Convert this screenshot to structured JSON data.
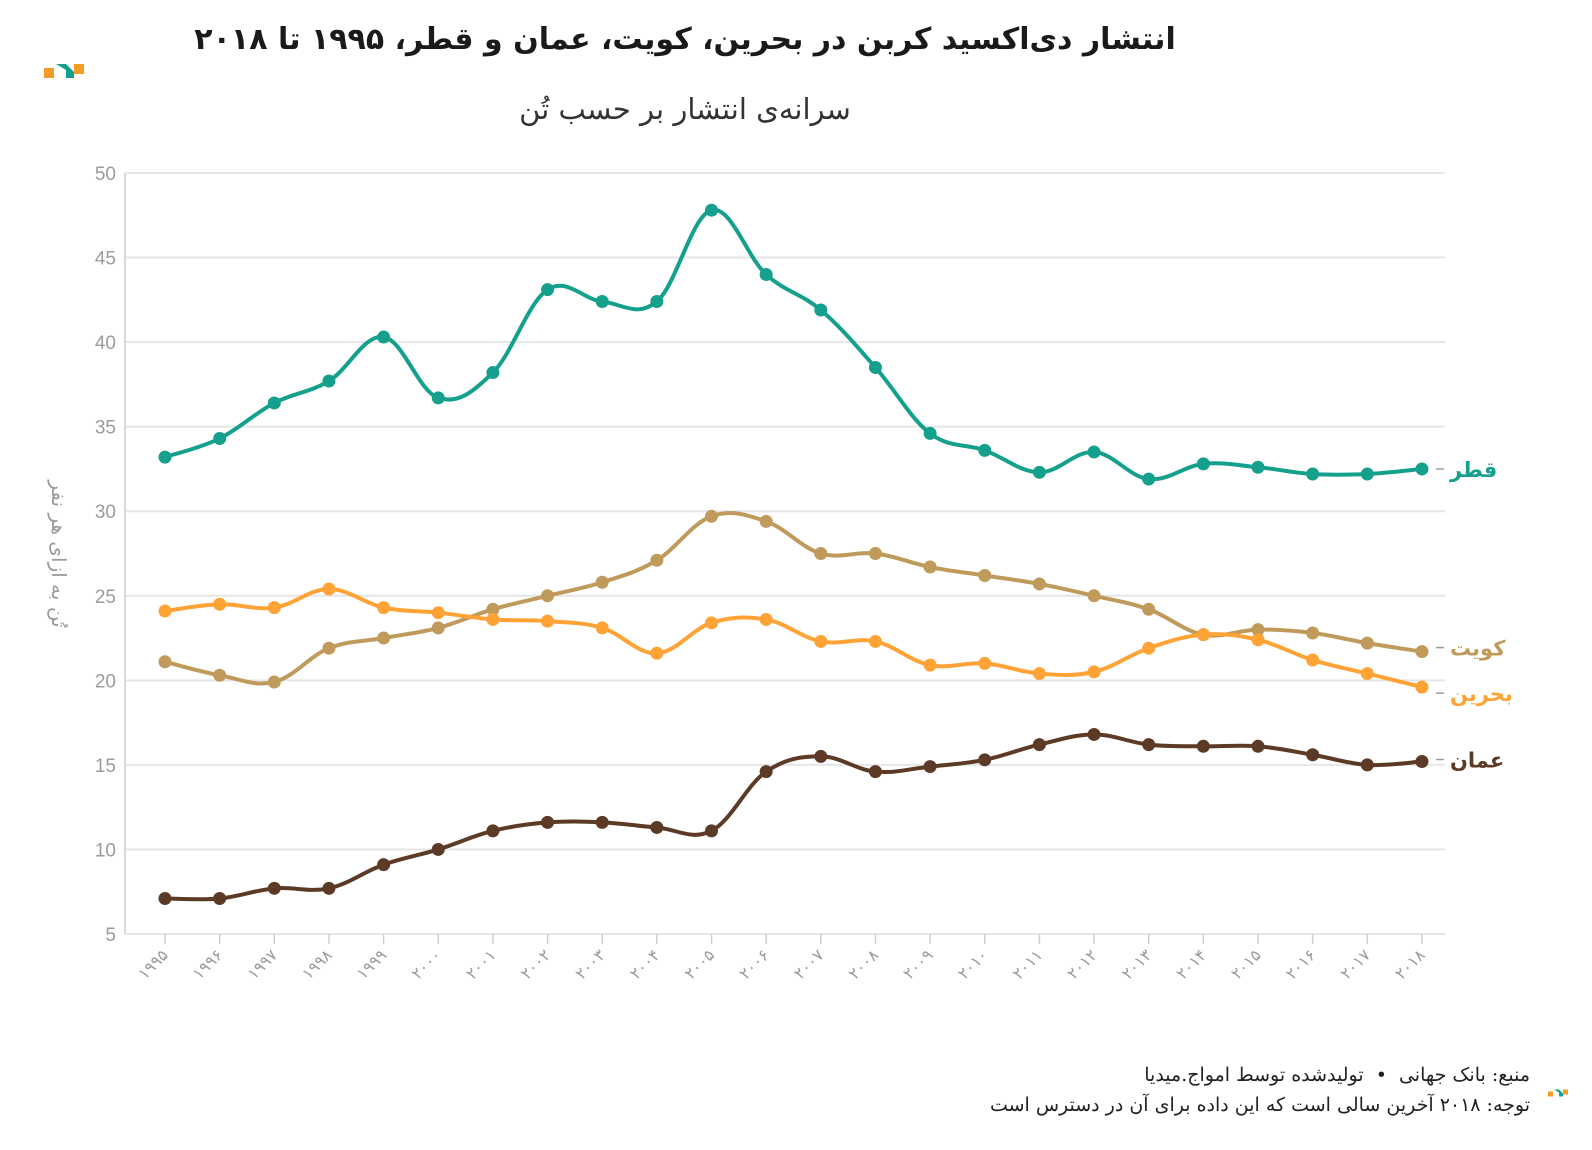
{
  "title": "انتشار دی‌اکسید کربن در بحرین، کویت، عمان و قطر، ۱۹۹۵ تا ۲۰۱۸",
  "subtitle": "سرانه‌ی انتشار بر حسب تُن",
  "footer": {
    "source": "منبع: بانک جهانی",
    "bullet": "•",
    "credit": "تولیدشده توسط امواج.میدیا",
    "note": "توجه: ۲۰۱۸ آخرین سالی است که این داده برای آن در دسترس است"
  },
  "colors": {
    "qatar": "#14a08c",
    "kuwait": "#bf9a5b",
    "bahrain": "#ffa336",
    "oman": "#5c3a26",
    "grid": "#e6e6e6",
    "axis_text": "#9b9b9b",
    "logo_orange": "#f39c28",
    "logo_teal": "#14a08c"
  },
  "chart_data": {
    "type": "line",
    "ylabel": "تُن به ازای هر نفر",
    "ylim": [
      5,
      50
    ],
    "yticks": [
      "5",
      "10",
      "15",
      "20",
      "25",
      "30",
      "35",
      "40",
      "45",
      "50"
    ],
    "x": [
      "۱۹۹۵",
      "۱۹۹۶",
      "۱۹۹۷",
      "۱۹۹۸",
      "۱۹۹۹",
      "۲۰۰۰",
      "۲۰۰۱",
      "۲۰۰۲",
      "۲۰۰۳",
      "۲۰۰۴",
      "۲۰۰۵",
      "۲۰۰۶",
      "۲۰۰۷",
      "۲۰۰۸",
      "۲۰۰۹",
      "۲۰۱۰",
      "۲۰۱۱",
      "۲۰۱۲",
      "۲۰۱۳",
      "۲۰۱۴",
      "۲۰۱۵",
      "۲۰۱۶",
      "۲۰۱۷",
      "۲۰۱۸"
    ],
    "grid": true,
    "legend": "end-of-line labels",
    "series": [
      {
        "key": "qatar",
        "name": "قطر",
        "values": [
          33.2,
          34.3,
          36.4,
          37.7,
          40.3,
          36.7,
          38.2,
          43.1,
          42.4,
          42.4,
          47.8,
          44.0,
          41.9,
          38.5,
          34.6,
          33.6,
          32.3,
          33.5,
          31.9,
          32.8,
          32.6,
          32.2,
          32.2,
          32.5
        ]
      },
      {
        "key": "kuwait",
        "name": "کویت",
        "values": [
          21.1,
          20.3,
          19.9,
          21.9,
          22.5,
          23.1,
          24.2,
          25.0,
          25.8,
          27.1,
          29.7,
          29.4,
          27.5,
          27.5,
          26.7,
          26.2,
          25.7,
          25.0,
          24.2,
          22.7,
          23.0,
          22.8,
          22.2,
          21.7
        ]
      },
      {
        "key": "bahrain",
        "name": "بحرین",
        "values": [
          24.1,
          24.5,
          24.3,
          25.4,
          24.3,
          24.0,
          23.6,
          23.5,
          23.1,
          21.6,
          23.4,
          23.6,
          22.3,
          22.3,
          20.9,
          21.0,
          20.4,
          20.5,
          21.9,
          22.7,
          22.4,
          21.2,
          20.4,
          19.6
        ]
      },
      {
        "key": "oman",
        "name": "عمان",
        "values": [
          7.1,
          7.1,
          7.7,
          7.7,
          9.1,
          10.0,
          11.1,
          11.6,
          11.6,
          11.3,
          11.1,
          14.6,
          15.5,
          14.6,
          14.9,
          15.3,
          16.2,
          16.8,
          16.2,
          16.1,
          16.1,
          15.6,
          15.0,
          15.2
        ]
      }
    ]
  }
}
